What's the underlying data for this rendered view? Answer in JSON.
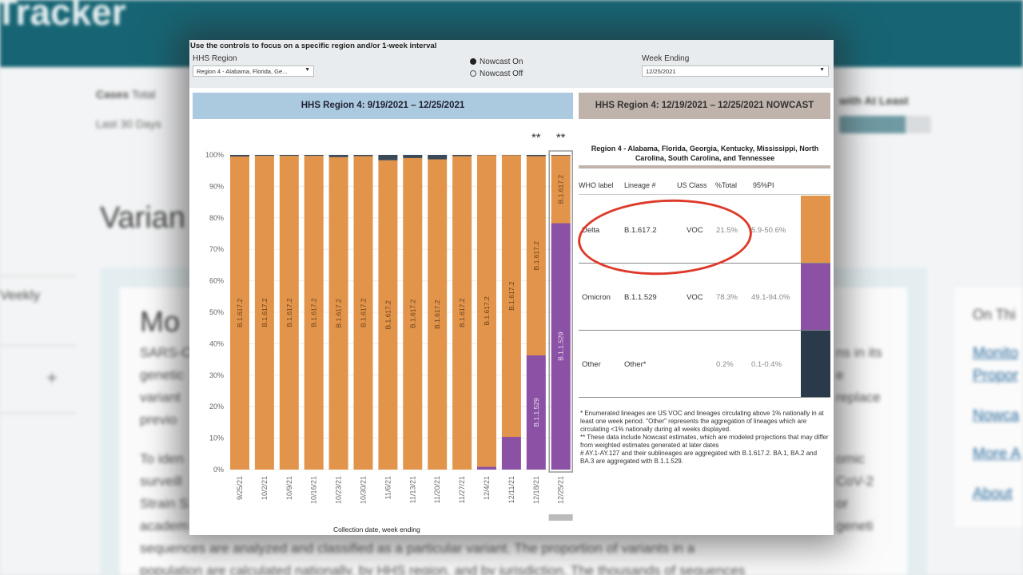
{
  "background": {
    "brand_text": "Tracker",
    "cases_label": "Cases",
    "cases_total": "Total",
    "last_days": "Last 30 Days",
    "at_least_text": "with At Least",
    "heading_fragment": "Varian",
    "weekly_fragment": "Veekly",
    "plus_glyph": "+",
    "card_heading_fragment": "Mo",
    "body_lines": [
      "SARS-C",
      "genetic",
      "variant",
      "previo",
      "To iden",
      "surveill",
      "Strain S",
      "academ",
      "sequences are analyzed and classified as a particular variant. The proportion of variants in a",
      "population are calculated nationally, by HHS region, and by jurisdiction. The thousands of sequences"
    ],
    "right_fragments": [
      "ns in its",
      "e",
      "replace",
      "omic",
      "CoV-2",
      "or",
      "geneti"
    ],
    "side_heading": "On Thi",
    "side_links": [
      "Monito",
      "Propor",
      "Nowca",
      "More A",
      "About"
    ]
  },
  "controls": {
    "heading": "Use the controls to focus on a specific region and/or 1-week interval",
    "region_label": "HHS Region",
    "region_value": "Region 4 - Alabama, Florida, Ge...",
    "nowcast_on": "Nowcast On",
    "nowcast_off": "Nowcast Off",
    "week_label": "Week Ending",
    "week_value": "12/25/2021"
  },
  "left_header": "HHS Region 4: 9/19/2021 – 12/25/2021",
  "right_header": "HHS Region 4: 12/19/2021 – 12/25/2021 NOWCAST",
  "chart_data": {
    "type": "bar",
    "stacked": true,
    "categories": [
      "9/25/21",
      "10/2/21",
      "10/9/21",
      "10/16/21",
      "10/23/21",
      "10/30/21",
      "11/6/21",
      "11/13/21",
      "11/20/21",
      "11/27/21",
      "12/4/21",
      "12/11/21",
      "12/18/21",
      "12/25/21"
    ],
    "series": [
      {
        "name": "B.1.1.529",
        "color": "#8a51a5",
        "values": [
          0,
          0,
          0,
          0,
          0,
          0,
          0,
          0,
          0,
          0,
          0.9,
          10.4,
          36.3,
          78.3
        ]
      },
      {
        "name": "B.1.617.2",
        "color": "#e3944b",
        "values": [
          99.5,
          99.7,
          99.7,
          99.7,
          99.3,
          99.6,
          98.3,
          99.0,
          98.6,
          99.6,
          99.0,
          89.5,
          63.3,
          21.5
        ]
      },
      {
        "name": "Other",
        "color": "#3b4a58",
        "values": [
          0.5,
          0.3,
          0.3,
          0.3,
          0.7,
          0.4,
          1.7,
          1.0,
          1.4,
          0.4,
          0.1,
          0.1,
          0.4,
          0.2
        ]
      }
    ],
    "bar_labels": [
      {
        "index": 0,
        "series": "B.1.617.2",
        "text": "B.1.617.2"
      },
      {
        "index": 1,
        "series": "B.1.617.2",
        "text": "B.1.617.2"
      },
      {
        "index": 2,
        "series": "B.1.617.2",
        "text": "B.1.617.2"
      },
      {
        "index": 3,
        "series": "B.1.617.2",
        "text": "B.1.617.2"
      },
      {
        "index": 4,
        "series": "B.1.617.2",
        "text": "B.1.617.2"
      },
      {
        "index": 5,
        "series": "B.1.617.2",
        "text": "B.1.617.2"
      },
      {
        "index": 6,
        "series": "B.1.617.2",
        "text": "B.1.617.2"
      },
      {
        "index": 7,
        "series": "B.1.617.2",
        "text": "B.1.617.2"
      },
      {
        "index": 8,
        "series": "B.1.617.2",
        "text": "B.1.617.2"
      },
      {
        "index": 9,
        "series": "B.1.617.2",
        "text": "B.1.617.2"
      },
      {
        "index": 10,
        "series": "B.1.617.2",
        "text": "B.1.617.2"
      },
      {
        "index": 11,
        "series": "B.1.617.2",
        "text": "B.1.617.2"
      },
      {
        "index": 12,
        "series": "B.1.617.2",
        "text": "B.1.617.2"
      },
      {
        "index": 12,
        "series": "B.1.1.529",
        "text": "B.1.1.529"
      },
      {
        "index": 13,
        "series": "B.1.617.2",
        "text": "B.1.617.2"
      },
      {
        "index": 13,
        "series": "B.1.1.529",
        "text": "B.1.1.529"
      }
    ],
    "nowcast_marks": [
      {
        "index": 12,
        "text": "**"
      },
      {
        "index": 13,
        "text": "**"
      }
    ],
    "selected_index": 13,
    "y_ticks": [
      "0%",
      "10%",
      "20%",
      "30%",
      "40%",
      "50%",
      "60%",
      "70%",
      "80%",
      "90%",
      "100%"
    ],
    "ylim": [
      0,
      100
    ],
    "xlabel": "Collection date, week ending",
    "grid": true
  },
  "nowcast": {
    "region_title": "Region 4 - Alabama, Florida, Georgia, Kentucky, Mississippi, North Carolina, South Carolina, and Tennessee",
    "columns": [
      "WHO label",
      "Lineage #",
      "US Class",
      "%Total",
      "95%PI"
    ],
    "rows": [
      {
        "who": "Delta",
        "lineage": "B.1.617.2",
        "us_class": "VOC",
        "pct": "21.5%",
        "pi": "5.9-50.6%",
        "color": "#e3944b"
      },
      {
        "who": "Omicron",
        "lineage": "B.1.1.529",
        "us_class": "VOC",
        "pct": "78.3%",
        "pi": "49.1-94.0%",
        "color": "#8a51a5"
      },
      {
        "who": "Other",
        "lineage": "Other*",
        "us_class": "",
        "pct": "0.2%",
        "pi": "0.1-0.4%",
        "color": "#2b3a4a"
      }
    ],
    "notes": [
      "*      Enumerated lineages are US VOC and lineages circulating above 1% nationally in at least one week period. \"Other\" represents the aggregation of lineages which are circulating <1% nationally during all weeks displayed.",
      "**      These data include Nowcast estimates, which are modeled projections that may differ from weighted estimates generated at later dates",
      "#      AY.1-AY.127 and their sublineages are aggregated with B.1.617.2. BA.1, BA.2 and BA.3 are aggregated with B.1.1.529."
    ]
  },
  "colors": {
    "delta": "#e3944b",
    "omicron": "#8a51a5",
    "other": "#3b4a58",
    "callout": "#dd3a2a"
  }
}
